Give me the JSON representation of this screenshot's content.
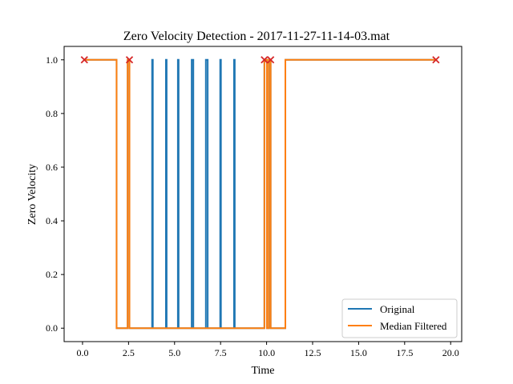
{
  "chart_data": {
    "type": "line",
    "title": "Zero Velocity Detection - 2017-11-27-11-14-03.mat",
    "xlabel": "Time",
    "ylabel": "Zero Velocity",
    "xlim": [
      -1.0,
      20.6
    ],
    "ylim": [
      -0.05,
      1.05
    ],
    "xticks": [
      0.0,
      2.5,
      5.0,
      7.5,
      10.0,
      12.5,
      15.0,
      17.5,
      20.0
    ],
    "xtick_labels": [
      "0.0",
      "2.5",
      "5.0",
      "7.5",
      "10.0",
      "12.5",
      "15.0",
      "17.5",
      "20.0"
    ],
    "yticks": [
      0.0,
      0.2,
      0.4,
      0.6,
      0.8,
      1.0
    ],
    "ytick_labels": [
      "0.0",
      "0.2",
      "0.4",
      "0.6",
      "0.8",
      "1.0"
    ],
    "grid": false,
    "legend_position": "lower-right",
    "series": [
      {
        "name": "Original",
        "color": "#1f77b4",
        "x": [
          0.1,
          1.85,
          1.85,
          2.45,
          2.45,
          2.55,
          2.55,
          3.78,
          3.78,
          3.82,
          3.82,
          4.53,
          4.53,
          4.57,
          4.57,
          5.18,
          5.18,
          5.22,
          5.22,
          5.93,
          5.93,
          6.02,
          6.02,
          6.7,
          6.7,
          6.8,
          6.8,
          7.48,
          7.48,
          7.52,
          7.52,
          8.23,
          8.23,
          8.27,
          8.27,
          9.88,
          9.88,
          10.02,
          10.02,
          10.12,
          10.12,
          10.22,
          10.22,
          11.02,
          11.02,
          19.2
        ],
        "y": [
          1,
          1,
          0,
          0,
          1,
          1,
          0,
          0,
          1,
          1,
          0,
          0,
          1,
          1,
          0,
          0,
          1,
          1,
          0,
          0,
          1,
          1,
          0,
          0,
          1,
          1,
          0,
          0,
          1,
          1,
          0,
          0,
          1,
          1,
          0,
          0,
          1,
          1,
          0,
          0,
          1,
          1,
          0,
          0,
          1,
          1
        ]
      },
      {
        "name": "Median Filtered",
        "color": "#ff7f0e",
        "x": [
          0.1,
          1.85,
          1.85,
          2.45,
          2.45,
          2.55,
          2.55,
          9.88,
          9.88,
          10.02,
          10.02,
          10.12,
          10.12,
          10.22,
          10.22,
          11.02,
          11.02,
          19.2
        ],
        "y": [
          1,
          1,
          0,
          0,
          1,
          1,
          0,
          0,
          1,
          1,
          0,
          0,
          1,
          1,
          0,
          0,
          1,
          1
        ]
      }
    ],
    "markers": {
      "name": "",
      "color": "#d62728",
      "symbol": "x",
      "x": [
        0.1,
        2.55,
        9.88,
        10.22,
        19.2
      ],
      "y": [
        1,
        1,
        1,
        1,
        1
      ]
    }
  }
}
